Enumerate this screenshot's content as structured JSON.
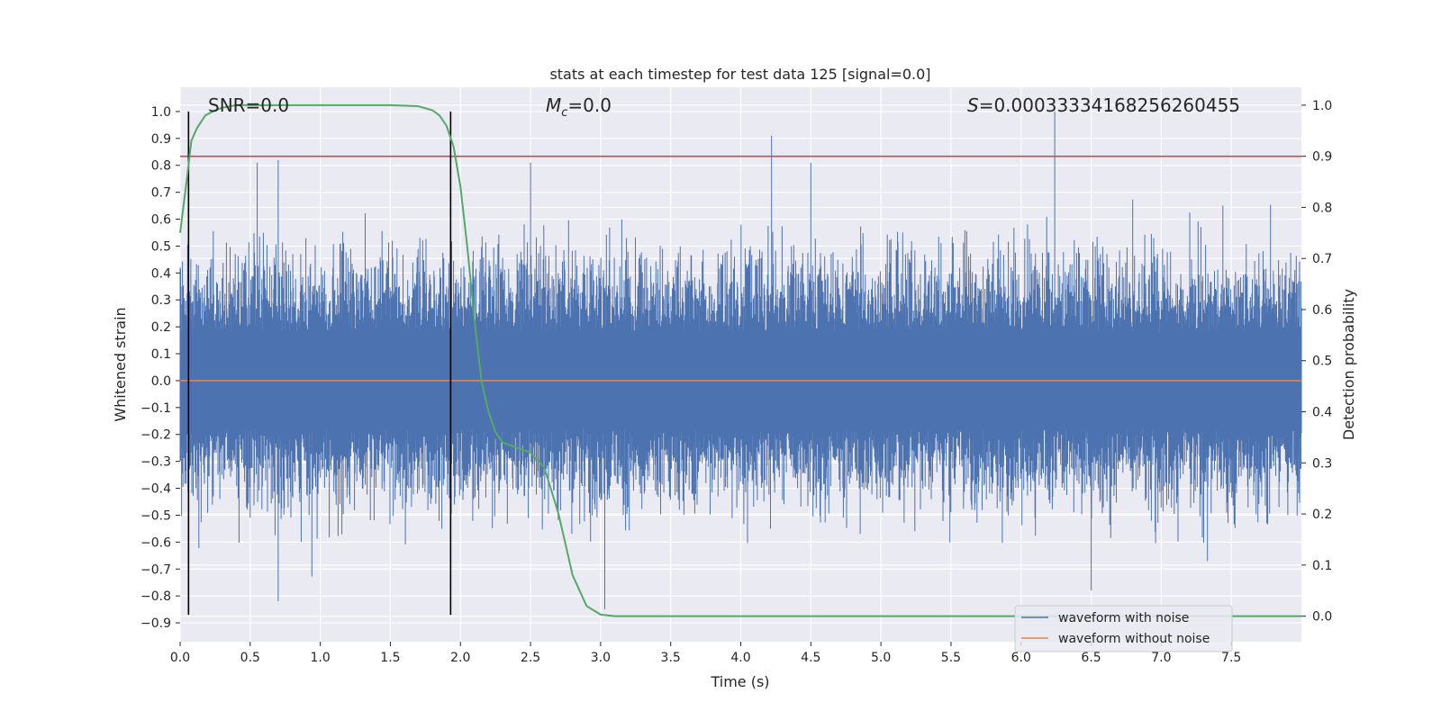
{
  "chart_data": {
    "type": "line",
    "title": "stats at each timestep for test data 125 [signal=0.0]",
    "xlabel": "Time (s)",
    "ylabel": "Whitened strain",
    "ylabel_right": "Detection probability",
    "xlim": [
      0.0,
      8.0
    ],
    "ylim": [
      -0.97,
      1.09
    ],
    "ylim_right": [
      -0.05,
      1.035
    ],
    "grid": true,
    "x_ticks": [
      "0.0",
      "0.5",
      "1.0",
      "1.5",
      "2.0",
      "2.5",
      "3.0",
      "3.5",
      "4.0",
      "4.5",
      "5.0",
      "5.5",
      "6.0",
      "6.5",
      "7.0",
      "7.5"
    ],
    "x_tick_values": [
      0.0,
      0.5,
      1.0,
      1.5,
      2.0,
      2.5,
      3.0,
      3.5,
      4.0,
      4.5,
      5.0,
      5.5,
      6.0,
      6.5,
      7.0,
      7.5
    ],
    "y_ticks": [
      "−0.9",
      "−0.8",
      "−0.7",
      "−0.6",
      "−0.5",
      "−0.4",
      "−0.3",
      "−0.2",
      "−0.1",
      "0.0",
      "0.1",
      "0.2",
      "0.3",
      "0.4",
      "0.5",
      "0.6",
      "0.7",
      "0.8",
      "0.9",
      "1.0"
    ],
    "y_tick_values": [
      -0.9,
      -0.8,
      -0.7,
      -0.6,
      -0.5,
      -0.4,
      -0.3,
      -0.2,
      -0.1,
      0.0,
      0.1,
      0.2,
      0.3,
      0.4,
      0.5,
      0.6,
      0.7,
      0.8,
      0.9,
      1.0
    ],
    "y_ticks_right": [
      "0.0",
      "0.1",
      "0.2",
      "0.3",
      "0.4",
      "0.5",
      "0.6",
      "0.7",
      "0.8",
      "0.9",
      "1.0"
    ],
    "y_tick_values_right": [
      0.0,
      0.1,
      0.2,
      0.3,
      0.4,
      0.5,
      0.6,
      0.7,
      0.8,
      0.9,
      1.0
    ],
    "annotations": {
      "snr": "SNR=0.0",
      "mc_symbol": "M",
      "mc_sub": "c",
      "mc_value": "=0.0",
      "s_symbol": "S",
      "s_value": "=0.00033334168256260455"
    },
    "series": [
      {
        "name": "waveform with noise",
        "color": "#4c72b0",
        "axis": "left",
        "description": "dense whitened-noise strain, ~N samples, envelope ±0.45 with peaks up to 1.0",
        "notable_peaks": [
          [
            0.55,
            0.81
          ],
          [
            0.7,
            0.82
          ],
          [
            2.5,
            0.81
          ],
          [
            4.22,
            0.91
          ],
          [
            4.5,
            0.81
          ],
          [
            6.24,
            1.0
          ]
        ],
        "notable_troughs": [
          [
            0.7,
            -0.82
          ],
          [
            3.03,
            -0.85
          ],
          [
            6.5,
            -0.78
          ]
        ]
      },
      {
        "name": "waveform without noise",
        "color": "#dd8452",
        "axis": "left",
        "x": [
          0.0,
          8.0
        ],
        "values": [
          0.0,
          0.0
        ]
      },
      {
        "name": "detection probability",
        "color": "#55a868",
        "axis": "right",
        "x": [
          0.0,
          0.05,
          0.08,
          0.12,
          0.18,
          0.25,
          0.3,
          0.4,
          0.5,
          1.0,
          1.5,
          1.7,
          1.8,
          1.85,
          1.9,
          1.95,
          2.0,
          2.05,
          2.1,
          2.15,
          2.2,
          2.25,
          2.3,
          2.4,
          2.5,
          2.6,
          2.7,
          2.8,
          2.9,
          3.0,
          3.1,
          4.0,
          5.0,
          6.0,
          7.0,
          8.0
        ],
        "values": [
          0.75,
          0.86,
          0.93,
          0.955,
          0.98,
          0.99,
          0.995,
          1.0,
          1.0,
          1.0,
          1.0,
          0.998,
          0.99,
          0.98,
          0.96,
          0.92,
          0.84,
          0.72,
          0.58,
          0.46,
          0.4,
          0.36,
          0.34,
          0.33,
          0.32,
          0.29,
          0.2,
          0.08,
          0.02,
          0.003,
          0.0,
          0.0,
          0.0,
          0.0,
          0.0,
          0.0
        ]
      }
    ],
    "hlines": [
      {
        "y": 0.9,
        "axis": "right",
        "color": "#c44e52"
      }
    ],
    "vlines": [
      {
        "x": 0.06,
        "y_range": [
          -0.87,
          1.0
        ],
        "color": "#000000"
      },
      {
        "x": 1.93,
        "y_range": [
          -0.87,
          1.0
        ],
        "color": "#000000"
      }
    ],
    "legend": {
      "location": "lower-right",
      "entries": [
        {
          "label": "waveform with noise",
          "color": "#4c72b0"
        },
        {
          "label": "waveform without noise",
          "color": "#dd8452"
        }
      ]
    }
  },
  "style": {
    "axes_bg": "#eaeaf2",
    "grid_color": "#ffffff",
    "text_color": "#262626"
  }
}
